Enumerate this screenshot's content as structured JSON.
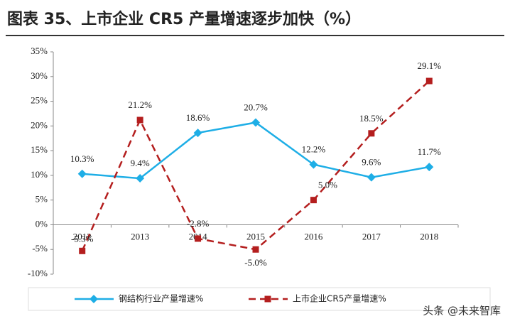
{
  "chart_data": {
    "type": "line",
    "title": "图表 35、上市企业 CR5 产量增速逐步加快（%）",
    "categories": [
      "2012",
      "2013",
      "2014",
      "2015",
      "2016",
      "2017",
      "2018"
    ],
    "series": [
      {
        "name": "钢结构行业产量增速%",
        "color": "#1eaee6",
        "marker": "diamond",
        "line_style": "solid",
        "values": [
          10.3,
          9.4,
          18.6,
          20.7,
          12.2,
          9.6,
          11.7
        ],
        "value_labels": [
          "10.3%",
          "9.4%",
          "18.6%",
          "20.7%",
          "12.2%",
          "9.6%",
          "11.7%"
        ]
      },
      {
        "name": "上市企业CR5产量增速%",
        "color": "#b41e1e",
        "marker": "square",
        "line_style": "dashed",
        "values": [
          -5.3,
          21.2,
          -2.8,
          -5.0,
          5.0,
          18.5,
          29.1
        ],
        "value_labels": [
          "-5.3%",
          "21.2%",
          "-2.8%",
          "-5.0%",
          "5.0%",
          "18.5%",
          "29.1%"
        ]
      }
    ],
    "ylim": [
      -10,
      35
    ],
    "yticks": [
      {
        "value": -10,
        "label": "-10%"
      },
      {
        "value": -5,
        "label": "-5%"
      },
      {
        "value": 0,
        "label": "0%"
      },
      {
        "value": 5,
        "label": "5%"
      },
      {
        "value": 10,
        "label": "10%"
      },
      {
        "value": 15,
        "label": "15%"
      },
      {
        "value": 20,
        "label": "20%"
      },
      {
        "value": 25,
        "label": "25%"
      },
      {
        "value": 30,
        "label": "30%"
      },
      {
        "value": 35,
        "label": "35%"
      }
    ],
    "legend": "bottom",
    "watermark": "头条 @未来智库"
  }
}
